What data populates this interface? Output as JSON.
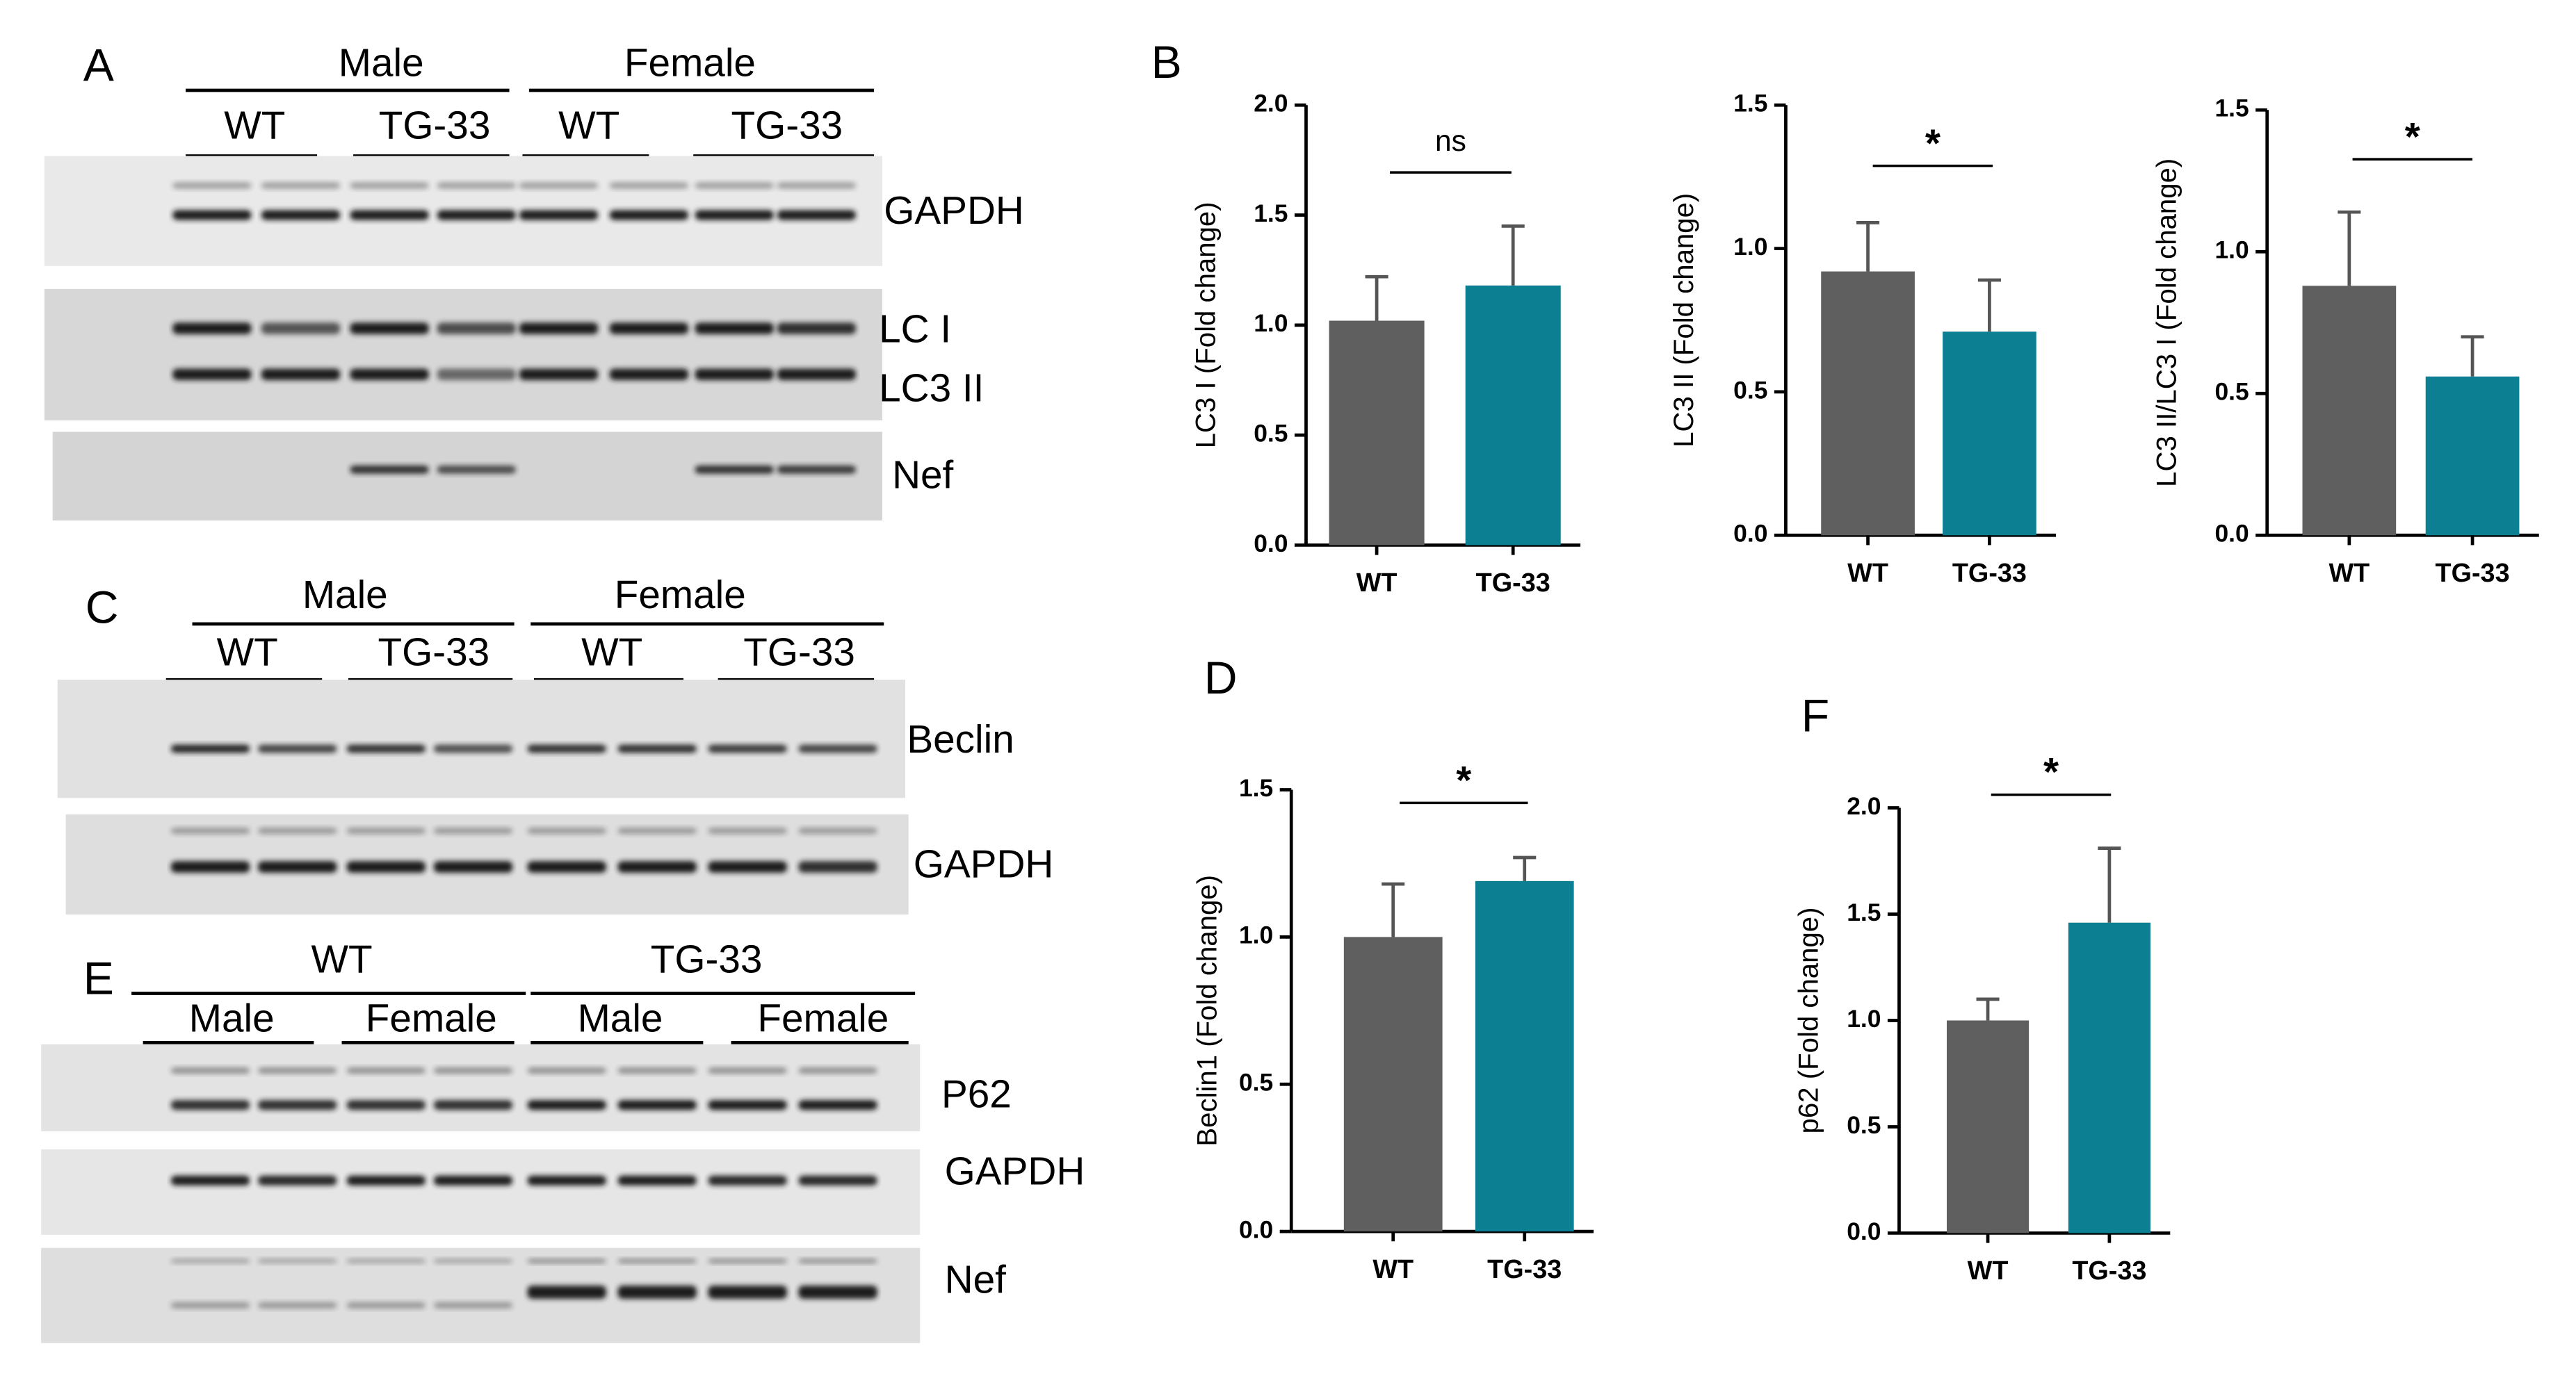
{
  "blots": [
    {
      "panel": "A",
      "groups": [
        "Male",
        "Female"
      ],
      "subgroups": [
        "WT",
        "TG-33",
        "WT",
        "TG-33"
      ],
      "bands": [
        "GAPDH",
        "LC I",
        "LC3 II",
        "Nef"
      ]
    },
    {
      "panel": "C",
      "groups": [
        "Male",
        "Female"
      ],
      "subgroups": [
        "WT",
        "TG-33",
        "WT",
        "TG-33"
      ],
      "bands": [
        "Beclin",
        "GAPDH"
      ]
    },
    {
      "panel": "E",
      "groups": [
        "WT",
        "TG-33"
      ],
      "subgroups": [
        "Male",
        "Female",
        "Male",
        "Female"
      ],
      "bands": [
        "P62",
        "GAPDH",
        "Nef"
      ]
    }
  ],
  "chart_data": [
    {
      "type": "bar",
      "panel": "B",
      "ylabel": "LC3 I (Fold change)",
      "categories": [
        "WT",
        "TG-33"
      ],
      "values": [
        1.02,
        1.18
      ],
      "errors": [
        0.2,
        0.27
      ],
      "colors": [
        "#5f5f5f",
        "#0c7f92"
      ],
      "ylim": [
        0,
        2
      ],
      "yticks": [
        {
          "value": 0,
          "label": "0.0"
        },
        0.5,
        {
          "value": 1,
          "label": "1.0"
        },
        1.5,
        {
          "value": 2,
          "label": "2.0"
        }
      ],
      "annotation": "ns"
    },
    {
      "type": "bar",
      "ylabel": "LC3 II (Fold change)",
      "categories": [
        "WT",
        "TG-33"
      ],
      "values": [
        0.92,
        0.71
      ],
      "errors": [
        0.17,
        0.18
      ],
      "colors": [
        "#5f5f5f",
        "#0c7f92"
      ],
      "ylim": [
        0,
        1.5
      ],
      "yticks": [
        {
          "value": 0,
          "label": "0.0"
        },
        0.5,
        {
          "value": 1,
          "label": "1.0"
        },
        1.5
      ],
      "annotation": "*"
    },
    {
      "type": "bar",
      "ylabel": "LC3 II/LC3 I (Fold change)",
      "categories": [
        "WT",
        "TG-33"
      ],
      "values": [
        0.88,
        0.56
      ],
      "errors": [
        0.26,
        0.14
      ],
      "colors": [
        "#5f5f5f",
        "#0c7f92"
      ],
      "ylim": [
        0,
        1.5
      ],
      "yticks": [
        {
          "value": 0,
          "label": "0.0"
        },
        0.5,
        {
          "value": 1,
          "label": "1.0"
        },
        1.5
      ],
      "annotation": "*"
    },
    {
      "type": "bar",
      "panel": "D",
      "ylabel": "Beclin1 (Fold change)",
      "categories": [
        "WT",
        "TG-33"
      ],
      "values": [
        1.0,
        1.19
      ],
      "errors": [
        0.18,
        0.08
      ],
      "colors": [
        "#5f5f5f",
        "#0c7f92"
      ],
      "ylim": [
        0,
        1.5
      ],
      "yticks": [
        {
          "value": 0,
          "label": "0.0"
        },
        0.5,
        {
          "value": 1,
          "label": "1.0"
        },
        1.5
      ],
      "annotation": "*"
    },
    {
      "type": "bar",
      "panel": "F",
      "ylabel": "p62 (Fold change)",
      "categories": [
        "WT",
        "TG-33"
      ],
      "values": [
        1.0,
        1.46
      ],
      "errors": [
        0.1,
        0.35
      ],
      "colors": [
        "#5f5f5f",
        "#0c7f92"
      ],
      "ylim": [
        0,
        2
      ],
      "yticks": [
        {
          "value": 0,
          "label": "0.0"
        },
        0.5,
        {
          "value": 1,
          "label": "1.0"
        },
        1.5,
        {
          "value": 2,
          "label": "2.0"
        }
      ],
      "annotation": "*"
    }
  ]
}
